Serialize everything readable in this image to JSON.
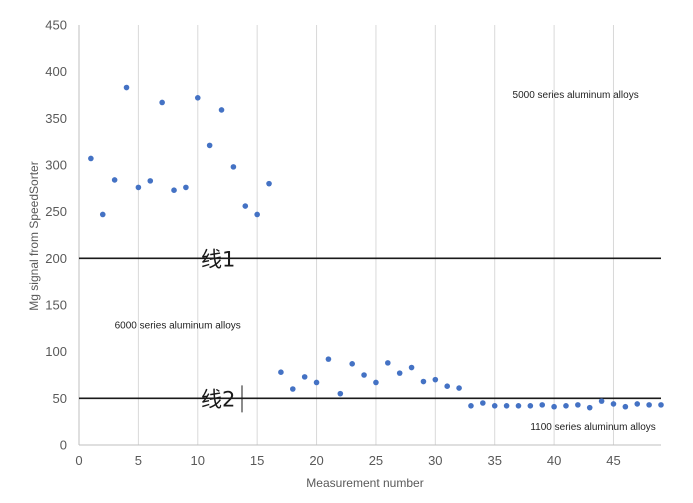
{
  "chart_data": {
    "type": "scatter",
    "xlabel": "Measurement number",
    "ylabel": "Mg signal from SpeedSorter",
    "xlim": [
      0,
      49
    ],
    "ylim": [
      0,
      450
    ],
    "xticks": [
      0,
      5,
      10,
      15,
      20,
      25,
      30,
      35,
      40,
      45
    ],
    "yticks": [
      0,
      50,
      100,
      150,
      200,
      250,
      300,
      350,
      400,
      450
    ],
    "grid": "vertical",
    "marker_color": "#4472c4",
    "series": [
      {
        "x": [
          1,
          2,
          3,
          4,
          5,
          6,
          7,
          8,
          9,
          10,
          11,
          12,
          13,
          14,
          15,
          16,
          17,
          18,
          19,
          20,
          21,
          22,
          23,
          24,
          25,
          26,
          27,
          28,
          29,
          30,
          31,
          32,
          33,
          34,
          35,
          36,
          37,
          38,
          39,
          40,
          41,
          42,
          43,
          44,
          45,
          46,
          47,
          48,
          49
        ],
        "y": [
          307,
          247,
          284,
          383,
          276,
          283,
          367,
          273,
          276,
          372,
          321,
          359,
          298,
          256,
          247,
          280,
          78,
          60,
          73,
          67,
          92,
          55,
          87,
          75,
          67,
          88,
          77,
          83,
          68,
          70,
          63,
          61,
          42,
          45,
          42,
          42,
          42,
          42,
          43,
          41,
          42,
          43,
          40,
          47,
          44,
          41,
          44,
          43,
          43
        ]
      }
    ],
    "reference_lines": [
      {
        "y": 200,
        "label": "线1",
        "color": "#1a1a1a"
      },
      {
        "y": 50,
        "label": "线2",
        "color": "#1a1a1a"
      }
    ],
    "annotations": [
      {
        "text": "5000 series aluminum alloys",
        "x": 36.5,
        "y": 372
      },
      {
        "text": "6000 series aluminum alloys",
        "x": 3,
        "y": 125
      },
      {
        "text": "1100 series aluminum alloys",
        "x": 38,
        "y": 16
      }
    ]
  }
}
